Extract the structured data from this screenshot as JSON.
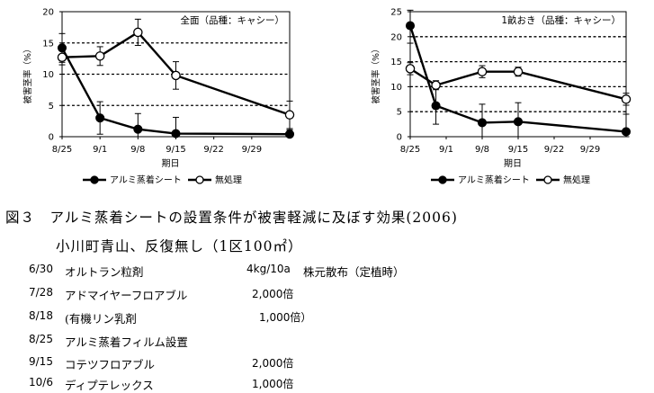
{
  "chart_data": [
    {
      "type": "line",
      "title": "全面（品種：キャシー）",
      "xlabel": "期日",
      "ylabel": "被害茎率（%）",
      "ylim": [
        0,
        20
      ],
      "yticks": [
        0,
        5,
        10,
        15,
        20
      ],
      "xlim": [
        "8/25",
        "10/6"
      ],
      "xticks": [
        "8/25",
        "9/1",
        "9/8",
        "9/15",
        "9/22",
        "9/29"
      ],
      "grid": "horizontal dashed at 5, 10, 15",
      "legend": "bottom",
      "series": [
        {
          "name": "アルミ蒸着シート",
          "marker": "filled circle",
          "x": [
            "8/25",
            "9/1",
            "9/8",
            "9/15",
            "10/6"
          ],
          "y": [
            14.2,
            3.0,
            1.2,
            0.5,
            0.4
          ],
          "err": [
            2.3,
            2.6,
            2.5,
            2.6,
            0.7
          ]
        },
        {
          "name": "無処理",
          "marker": "open circle",
          "x": [
            "8/25",
            "9/1",
            "9/8",
            "9/15",
            "10/6"
          ],
          "y": [
            12.7,
            12.9,
            16.7,
            9.8,
            3.5
          ],
          "err": [
            1.2,
            1.5,
            2.1,
            2.2,
            2.2
          ]
        }
      ]
    },
    {
      "type": "line",
      "title": "1畝おき（品種：キャシー）",
      "xlabel": "期日",
      "ylabel": "被害茎率（%）",
      "ylim": [
        0,
        25
      ],
      "yticks": [
        0,
        5,
        10,
        15,
        20,
        25
      ],
      "xlim": [
        "8/25",
        "10/6"
      ],
      "xticks": [
        "8/25",
        "9/1",
        "9/8",
        "9/15",
        "9/22",
        "9/29"
      ],
      "grid": "horizontal dashed at 5, 10, 15, 20",
      "legend": "bottom",
      "series": [
        {
          "name": "アルミ蒸着シート",
          "marker": "filled circle",
          "x": [
            "8/25",
            "8/30",
            "9/8",
            "9/15",
            "10/6"
          ],
          "y": [
            22.2,
            6.2,
            2.8,
            3.0,
            1.0
          ],
          "err": [
            3.5,
            3.7,
            3.7,
            3.8,
            3.5
          ]
        },
        {
          "name": "無処理",
          "marker": "open circle",
          "x": [
            "8/25",
            "8/30",
            "9/8",
            "9/15",
            "10/6"
          ],
          "y": [
            13.6,
            10.3,
            13.0,
            13.0,
            7.5
          ],
          "err": [
            1.2,
            0.9,
            1.2,
            0.9,
            1.2
          ]
        }
      ]
    }
  ],
  "caption": {
    "title": "図３　アルミ蒸着シートの設置条件が被害軽減に及ぼす効果(2006)",
    "subtitle": "小川町青山、反復無し（1区100㎡）"
  },
  "schedule": [
    {
      "date": "6/30",
      "item": "オルトラン粒剤",
      "dose": "4kg/10a",
      "note": "株元散布（定植時）"
    },
    {
      "date": "7/28",
      "item": "アドマイヤーフロアブル",
      "dose": "2,000倍",
      "note": ""
    },
    {
      "date": "8/18",
      "item": "(有機リン乳剤",
      "dose": "1,000倍）",
      "note": ""
    },
    {
      "date": "8/25",
      "item": "アルミ蒸着フィルム設置",
      "dose": "",
      "note": ""
    },
    {
      "date": "9/15",
      "item": "コテツフロアブル",
      "dose": "2,000倍",
      "note": ""
    },
    {
      "date": "10/6",
      "item": "ディプテレックス",
      "dose": "1,000倍",
      "note": ""
    }
  ]
}
